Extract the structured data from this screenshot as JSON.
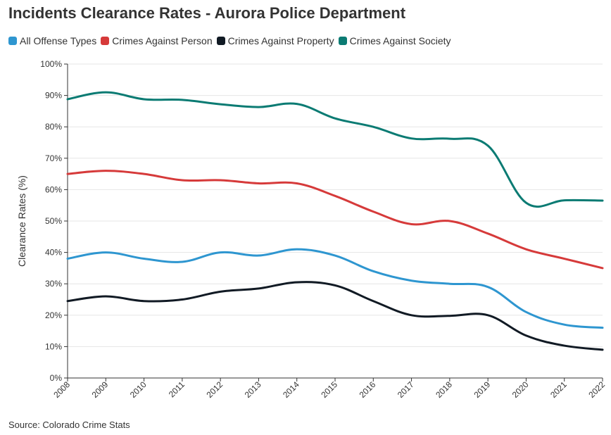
{
  "title": "Incidents Clearance Rates - Aurora Police Department",
  "source": "Source: Colorado Crime Stats",
  "chart_data": {
    "type": "line",
    "title": "Incidents Clearance Rates - Aurora Police Department",
    "xlabel": "",
    "ylabel": "Clearance Rates (%)",
    "ylim": [
      0,
      100
    ],
    "y_ticks": [
      "0%",
      "10%",
      "20%",
      "30%",
      "40%",
      "50%",
      "60%",
      "70%",
      "80%",
      "90%",
      "100%"
    ],
    "x": [
      "2008",
      "2009",
      "2010",
      "2011",
      "2012",
      "2013",
      "2014",
      "2015",
      "2016",
      "2017",
      "2018",
      "2019",
      "2020",
      "2021",
      "2022"
    ],
    "legend_position": "top-left",
    "grid": true,
    "series": [
      {
        "name": "All Offense Types",
        "color": "#2E96D0",
        "values": [
          38,
          40,
          38,
          37,
          40,
          39,
          41,
          39,
          34,
          31,
          30,
          29,
          21,
          17,
          16
        ]
      },
      {
        "name": "Crimes Against Person",
        "color": "#D63A3A",
        "values": [
          65,
          66,
          65,
          63,
          63,
          62,
          62,
          58,
          53,
          49,
          50,
          46,
          41,
          38,
          35
        ]
      },
      {
        "name": "Crimes Against Property",
        "color": "#111A24",
        "values": [
          24.5,
          26,
          24.5,
          25,
          27.5,
          28.5,
          30.5,
          29.5,
          24.5,
          20,
          19.8,
          20,
          13.5,
          10.3,
          9
        ]
      },
      {
        "name": "Crimes Against Society",
        "color": "#0B7B73",
        "values": [
          88.8,
          91,
          88.8,
          88.6,
          87.2,
          86.3,
          87.3,
          82.7,
          80,
          76.3,
          76.2,
          74,
          55.8,
          56.6,
          56.5
        ]
      }
    ]
  }
}
